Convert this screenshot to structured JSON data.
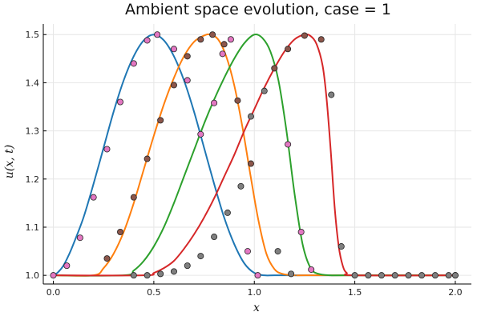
{
  "chart_data": {
    "type": "line",
    "title": "Ambient space evolution, case = 1",
    "xlabel": "x",
    "ylabel": "u(x, t)",
    "xlim": [
      -0.05,
      2.08
    ],
    "ylim": [
      0.982,
      1.522
    ],
    "xticks": [
      0.0,
      0.5,
      1.0,
      1.5,
      2.0
    ],
    "xtick_labels": [
      "0.0",
      "0.5",
      "1.0",
      "1.5",
      "2.0"
    ],
    "yticks": [
      1.0,
      1.1,
      1.2,
      1.3,
      1.4,
      1.5
    ],
    "ytick_labels": [
      "1.0",
      "1.1",
      "1.2",
      "1.3",
      "1.4",
      "1.5"
    ],
    "grid": true,
    "legend": "none",
    "series": [
      {
        "color": "#1f77b4",
        "x": [
          0.0,
          0.02,
          0.05,
          0.08,
          0.1,
          0.15,
          0.2,
          0.25,
          0.3,
          0.35,
          0.4,
          0.45,
          0.5,
          0.55,
          0.6,
          0.65,
          0.7,
          0.75,
          0.8,
          0.85,
          0.9,
          0.95,
          1.0,
          1.05,
          1.1,
          1.2,
          1.5,
          2.0
        ],
        "y": [
          1.0,
          1.005,
          1.02,
          1.045,
          1.065,
          1.12,
          1.19,
          1.265,
          1.34,
          1.405,
          1.455,
          1.488,
          1.5,
          1.488,
          1.455,
          1.405,
          1.34,
          1.265,
          1.19,
          1.12,
          1.065,
          1.025,
          1.005,
          1.0,
          1.0,
          1.0,
          1.0,
          1.0
        ]
      },
      {
        "color": "#ff7f0e",
        "x": [
          0.0,
          0.2,
          0.25,
          0.3,
          0.35,
          0.4,
          0.45,
          0.5,
          0.55,
          0.6,
          0.65,
          0.7,
          0.75,
          0.78,
          0.82,
          0.86,
          0.9,
          0.94,
          0.98,
          1.02,
          1.06,
          1.1,
          1.14,
          1.2,
          1.3,
          2.0
        ],
        "y": [
          1.0,
          1.0,
          1.015,
          1.045,
          1.09,
          1.15,
          1.22,
          1.29,
          1.355,
          1.41,
          1.455,
          1.485,
          1.498,
          1.5,
          1.49,
          1.455,
          1.395,
          1.31,
          1.21,
          1.115,
          1.045,
          1.013,
          1.003,
          1.0,
          1.0,
          1.0
        ]
      },
      {
        "color": "#2ca02c",
        "x": [
          0.0,
          0.35,
          0.4,
          0.45,
          0.5,
          0.55,
          0.6,
          0.65,
          0.7,
          0.75,
          0.8,
          0.85,
          0.9,
          0.95,
          1.0,
          1.04,
          1.08,
          1.12,
          1.16,
          1.2,
          1.24,
          1.28,
          1.32,
          1.38,
          1.45,
          2.0
        ],
        "y": [
          1.0,
          1.0,
          1.01,
          1.03,
          1.06,
          1.1,
          1.15,
          1.205,
          1.26,
          1.315,
          1.365,
          1.41,
          1.45,
          1.482,
          1.5,
          1.493,
          1.465,
          1.405,
          1.3,
          1.17,
          1.065,
          1.015,
          1.003,
          1.0,
          1.0,
          1.0
        ]
      },
      {
        "color": "#d62728",
        "x": [
          0.0,
          0.45,
          0.5,
          0.55,
          0.6,
          0.65,
          0.7,
          0.75,
          0.8,
          0.85,
          0.9,
          0.95,
          1.0,
          1.05,
          1.1,
          1.15,
          1.2,
          1.25,
          1.28,
          1.31,
          1.34,
          1.36,
          1.38,
          1.4,
          1.42,
          1.44,
          1.46,
          1.5,
          2.0
        ],
        "y": [
          1.0,
          1.0,
          1.005,
          1.015,
          1.03,
          1.055,
          1.085,
          1.12,
          1.16,
          1.205,
          1.25,
          1.3,
          1.345,
          1.39,
          1.43,
          1.465,
          1.49,
          1.5,
          1.497,
          1.48,
          1.435,
          1.365,
          1.26,
          1.14,
          1.06,
          1.02,
          1.005,
          1.0,
          1.0
        ]
      }
    ],
    "markers": [
      {
        "fill": "#e377c2",
        "x": [
          0.0,
          0.067,
          0.133,
          0.2,
          0.267,
          0.333,
          0.4,
          0.467,
          0.517,
          0.6,
          0.667,
          0.733,
          0.8,
          0.842,
          0.883,
          0.967,
          1.017,
          1.167,
          1.233,
          1.283,
          2.0
        ],
        "y": [
          1.0,
          1.02,
          1.078,
          1.162,
          1.262,
          1.36,
          1.44,
          1.488,
          1.5,
          1.47,
          1.405,
          1.293,
          1.358,
          1.46,
          1.49,
          1.05,
          1.0,
          1.272,
          1.09,
          1.012,
          1.0
        ]
      },
      {
        "fill": "#8c564b",
        "x": [
          0.267,
          0.333,
          0.4,
          0.467,
          0.533,
          0.6,
          0.667,
          0.733,
          0.792,
          0.85,
          0.917,
          0.983,
          1.1,
          1.167,
          1.25,
          1.333
        ],
        "y": [
          1.035,
          1.09,
          1.162,
          1.242,
          1.322,
          1.395,
          1.455,
          1.49,
          1.5,
          1.48,
          1.363,
          1.232,
          1.43,
          1.47,
          1.498,
          1.49
        ]
      },
      {
        "fill": "#7f7f7f",
        "x": [
          0.4,
          0.467,
          0.533,
          0.6,
          0.667,
          0.733,
          0.8,
          0.867,
          0.933,
          0.983,
          1.05,
          1.117,
          1.183,
          1.383,
          1.433,
          1.5,
          1.567,
          1.633,
          1.7,
          1.767,
          1.833,
          1.9,
          1.967,
          2.0
        ],
        "y": [
          1.0,
          1.0,
          1.003,
          1.008,
          1.02,
          1.04,
          1.08,
          1.13,
          1.185,
          1.33,
          1.383,
          1.05,
          1.003,
          1.375,
          1.06,
          1.0,
          1.0,
          1.0,
          1.0,
          1.0,
          1.0,
          1.0,
          1.0,
          1.0
        ]
      }
    ]
  }
}
